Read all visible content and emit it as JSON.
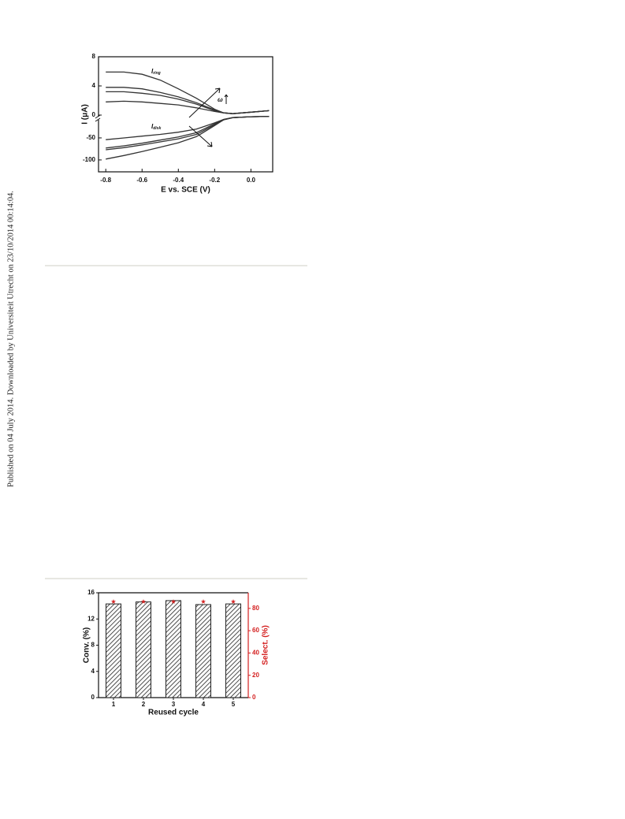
{
  "side_note": "Published on 04 July 2014. Downloaded by Universiteit Utrecht on 23/10/2014 00:14:04.",
  "chart_data": [
    {
      "type": "line",
      "x": [
        -0.8,
        -0.7,
        -0.6,
        -0.5,
        -0.4,
        -0.3,
        -0.2,
        -0.15,
        -0.1,
        0.0,
        0.1
      ],
      "xlim": [
        -0.84,
        0.12
      ],
      "xticks": [
        -0.8,
        -0.6,
        -0.4,
        -0.2,
        {
          "value": 0,
          "label": "0.0"
        }
      ],
      "ylim": [
        0,
        8
      ],
      "yticks": [
        0,
        4,
        8
      ],
      "y2lim": [
        -127,
        0
      ],
      "y2ticks": [
        -100,
        -50
      ],
      "x_label": "E vs. SCE (V)",
      "y_label": "I (μA)",
      "annotations": [
        {
          "text": "I",
          "sub": "ring"
        },
        {
          "text": "I",
          "sub": "disk"
        },
        {
          "text": "ω"
        }
      ],
      "series": [
        {
          "color": "#333",
          "values": [
            5.9,
            5.9,
            5.6,
            4.8,
            3.6,
            2.3,
            0.8,
            0.3,
            0.2,
            0.4,
            0.6
          ]
        },
        {
          "color": "#333",
          "values": [
            3.8,
            3.8,
            3.6,
            3.1,
            2.5,
            1.7,
            0.7,
            0.3,
            0.2,
            0.4,
            0.6
          ]
        },
        {
          "color": "#333",
          "values": [
            3.2,
            3.2,
            3.0,
            2.7,
            2.2,
            1.5,
            0.6,
            0.3,
            0.2,
            0.4,
            0.6
          ]
        },
        {
          "color": "#333",
          "values": [
            1.8,
            1.9,
            1.8,
            1.6,
            1.4,
            1.0,
            0.5,
            0.3,
            0.2,
            0.4,
            0.6
          ]
        },
        {
          "color": "#333",
          "axis": "y2",
          "values": [
            -54,
            -50,
            -46,
            -42,
            -37,
            -30,
            -16,
            -8,
            -4,
            -2,
            -1
          ]
        },
        {
          "color": "#333",
          "axis": "y2",
          "values": [
            -73,
            -68,
            -62,
            -55,
            -48,
            -38,
            -18,
            -8,
            -4,
            -2,
            -1
          ]
        },
        {
          "color": "#333",
          "axis": "y2",
          "values": [
            -77,
            -72,
            -66,
            -59,
            -52,
            -42,
            -20,
            -9,
            -4,
            -2,
            -1
          ]
        },
        {
          "color": "#333",
          "axis": "y2",
          "values": [
            -98,
            -90,
            -81,
            -71,
            -61,
            -47,
            -22,
            -9,
            -4,
            -2,
            -1
          ]
        }
      ]
    },
    {
      "type": "bar",
      "categories": [
        "1",
        "2",
        "3",
        "4",
        "5"
      ],
      "x_label": "Reused cycle",
      "y_label": "Conv. (%)",
      "y2_label": "Select. (%)",
      "ylim": [
        0,
        16
      ],
      "yticks": [
        0,
        4,
        8,
        12,
        16
      ],
      "y2lim": [
        0,
        94
      ],
      "y2ticks": [
        0,
        20,
        40,
        60,
        80
      ],
      "y2color": "#d42020",
      "series": [
        {
          "type": "bar",
          "color": "#222",
          "values": [
            14.3,
            14.6,
            14.8,
            14.2,
            14.3
          ]
        },
        {
          "type": "scatter",
          "axis": "y2",
          "marker": "star",
          "color": "#d42020",
          "values": [
            86,
            86,
            86,
            86,
            86
          ]
        }
      ]
    }
  ]
}
